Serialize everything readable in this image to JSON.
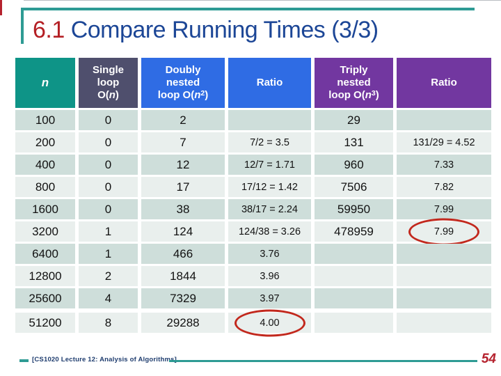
{
  "theme": {
    "teal": "#0E9487",
    "slate": "#4F4F6D",
    "blue": "#2F6CE4",
    "purple": "#7237A0",
    "rowdark": "#CEDEDA",
    "rowlight": "#E9EFED",
    "titlered": "#B41F24",
    "titleblue": "#1C4696",
    "navy": "#1E3C6E",
    "lineteal": "#2E9B94",
    "ovalred": "#C2281D",
    "pagered": "#B5222E"
  },
  "title": {
    "number": "6.1",
    "text": " Compare Running Times (3/3)"
  },
  "table": {
    "header": {
      "cells": [
        {
          "var": "n",
          "bg": "#0E9487",
          "label": "n"
        },
        {
          "line1": "Single",
          "line2": "loop",
          "o_pre": "O(",
          "var": "n",
          "exp": "",
          "o_post": ")",
          "bg": "#4F4F6D",
          "label": "Single loop O(n)"
        },
        {
          "line1": "Doubly",
          "line2": "nested",
          "o_pre": "loop O(",
          "var": "n",
          "exp": "2",
          "o_post": ")",
          "bg": "#2F6CE4",
          "label": "Doubly nested loop O(n2)"
        },
        {
          "line1": "Ratio",
          "bg": "#2F6CE4",
          "label": "Ratio"
        },
        {
          "line1": "Triply",
          "line2": "nested",
          "o_pre": "loop O(",
          "var": "n",
          "exp": "3",
          "o_post": ")",
          "bg": "#7237A0",
          "label": "Triply nested loop O(n3)"
        },
        {
          "line1": "Ratio",
          "bg": "#7237A0",
          "label": "Ratio"
        }
      ]
    },
    "rows": [
      {
        "n": "100",
        "single": "0",
        "doubly": "2",
        "ratio2": "",
        "triply": "29",
        "ratio3": ""
      },
      {
        "n": "200",
        "single": "0",
        "doubly": "7",
        "ratio2": "7/2 = 3.5",
        "triply": "131",
        "ratio3": "131/29 = 4.52"
      },
      {
        "n": "400",
        "single": "0",
        "doubly": "12",
        "ratio2": "12/7 = 1.71",
        "triply": "960",
        "ratio3": "7.33"
      },
      {
        "n": "800",
        "single": "0",
        "doubly": "17",
        "ratio2": "17/12 = 1.42",
        "triply": "7506",
        "ratio3": "7.82"
      },
      {
        "n": "1600",
        "single": "0",
        "doubly": "38",
        "ratio2": "38/17 = 2.24",
        "triply": "59950",
        "ratio3": "7.99"
      },
      {
        "n": "3200",
        "single": "1",
        "doubly": "124",
        "ratio2": "124/38 = 3.26",
        "triply": "478959",
        "ratio3": "7.99",
        "circled": "ratio3"
      },
      {
        "n": "6400",
        "single": "1",
        "doubly": "466",
        "ratio2": "3.76",
        "triply": "",
        "ratio3": ""
      },
      {
        "n": "12800",
        "single": "2",
        "doubly": "1844",
        "ratio2": "3.96",
        "triply": "",
        "ratio3": ""
      },
      {
        "n": "25600",
        "single": "4",
        "doubly": "7329",
        "ratio2": "3.97",
        "triply": "",
        "ratio3": ""
      },
      {
        "n": "51200",
        "single": "8",
        "doubly": "29288",
        "ratio2": "4.00",
        "triply": "",
        "ratio3": "",
        "circled": "ratio2"
      }
    ]
  },
  "footer": {
    "course_label": "[CS1020 Lecture 12: Analysis of Algorithms]",
    "page_number": "54"
  }
}
